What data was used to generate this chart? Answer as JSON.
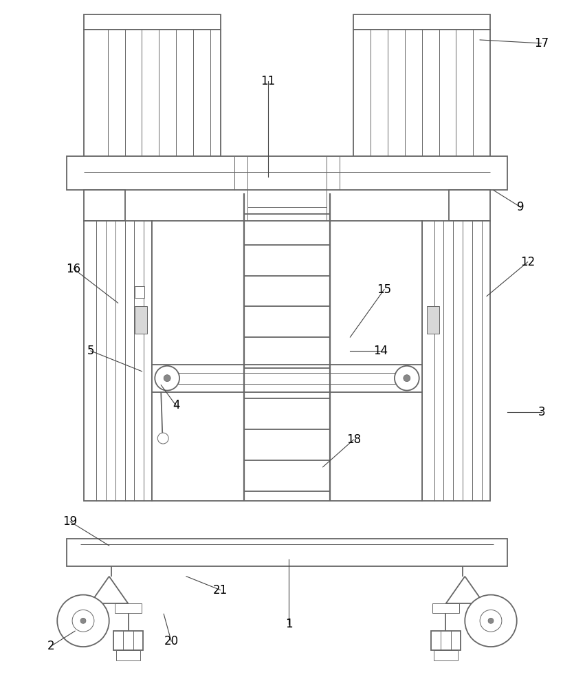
{
  "bg": "#ffffff",
  "lc": "#666666",
  "lw": 1.3,
  "tlw": 0.7,
  "fw": 8.35,
  "fh": 10.0,
  "ann": {
    "1": [
      420,
      910,
      420,
      815
    ],
    "2": [
      72,
      942,
      107,
      920
    ],
    "3": [
      790,
      600,
      740,
      600
    ],
    "4": [
      255,
      590,
      233,
      560
    ],
    "5": [
      130,
      510,
      205,
      540
    ],
    "9": [
      760,
      300,
      720,
      275
    ],
    "11": [
      390,
      115,
      390,
      255
    ],
    "12": [
      770,
      380,
      710,
      430
    ],
    "14": [
      555,
      510,
      510,
      510
    ],
    "15": [
      560,
      420,
      510,
      490
    ],
    "16": [
      105,
      390,
      170,
      440
    ],
    "17": [
      790,
      60,
      700,
      55
    ],
    "18": [
      515,
      640,
      470,
      680
    ],
    "19": [
      100,
      760,
      157,
      795
    ],
    "20": [
      248,
      935,
      237,
      895
    ],
    "21": [
      320,
      860,
      270,
      840
    ]
  }
}
